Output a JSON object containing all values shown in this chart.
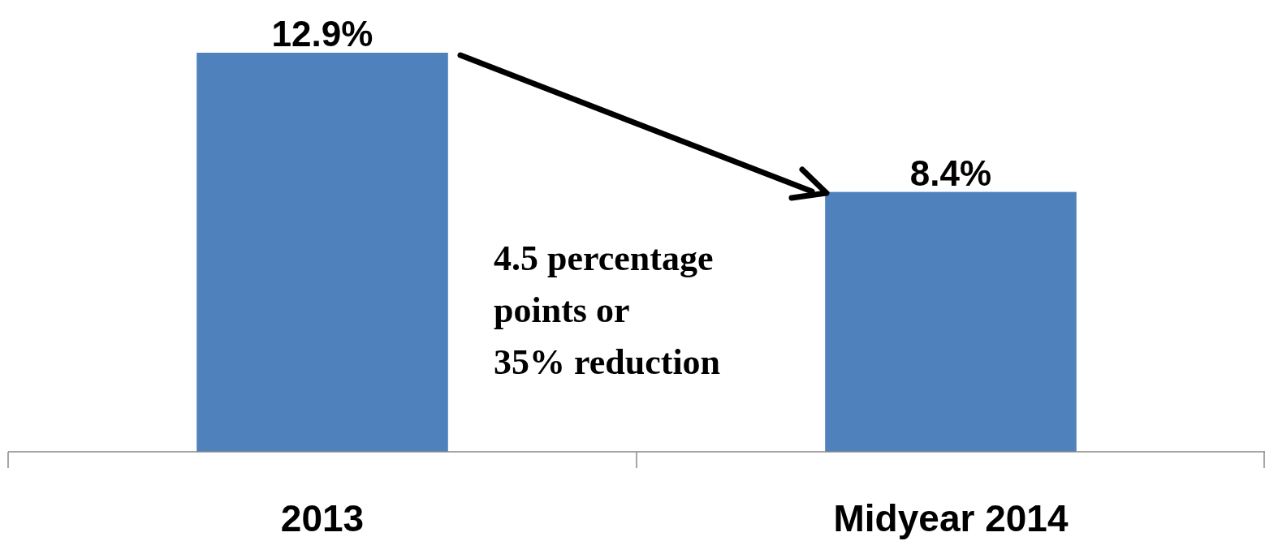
{
  "chart_data": {
    "type": "bar",
    "categories": [
      "2013",
      "Midyear 2014"
    ],
    "values": [
      12.9,
      8.4
    ],
    "value_labels": [
      "12.9%",
      "8.4%"
    ],
    "color": "#4f81bd",
    "annotations": [
      "4.5 percentage",
      "points or",
      "35% reduction"
    ]
  }
}
